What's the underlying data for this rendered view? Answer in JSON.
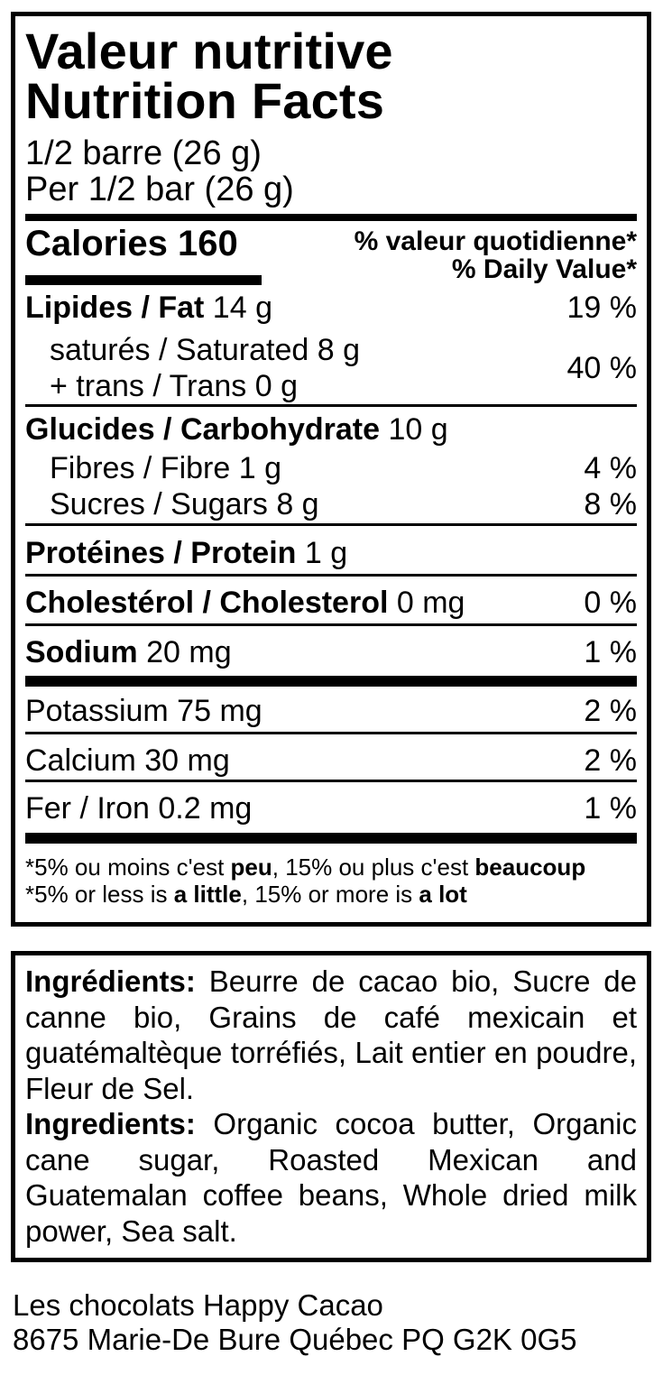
{
  "panel": {
    "title_fr": "Valeur nutritive",
    "title_en": "Nutrition Facts",
    "serving_fr": "1/2 barre (26 g)",
    "serving_en": "Per 1/2 bar (26 g)",
    "calories_label": "Calories 160",
    "dv_header_fr": "% valeur quotidienne*",
    "dv_header_en": "% Daily Value*",
    "rows": {
      "fat": {
        "bold": "Lipides / Fat",
        "rest": " 14 g",
        "dv": "19 %"
      },
      "sat": {
        "line1": "saturés / Saturated 8 g",
        "line2": "+ trans / Trans 0 g",
        "dv": "40 %"
      },
      "carb": {
        "bold": "Glucides / Carbohydrate",
        "rest": " 10 g"
      },
      "fibre": {
        "text": "Fibres / Fibre 1 g",
        "dv": "4 %"
      },
      "sugars": {
        "text": "Sucres / Sugars 8 g",
        "dv": "8 %"
      },
      "protein": {
        "bold": "Protéines / Protein",
        "rest": " 1 g"
      },
      "cholesterol": {
        "bold": "Cholestérol / Cholesterol",
        "rest": " 0 mg",
        "dv": "0 %"
      },
      "sodium": {
        "bold": "Sodium",
        "rest": " 20 mg",
        "dv": "1 %"
      },
      "potassium": {
        "text": "Potassium 75 mg",
        "dv": "2 %"
      },
      "calcium": {
        "text": "Calcium 30 mg",
        "dv": "2 %"
      },
      "iron": {
        "text": "Fer / Iron 0.2 mg",
        "dv": "1 %"
      }
    },
    "footnote": {
      "fr": [
        {
          "t": "*5% ou moins c'est "
        },
        {
          "t": "peu"
        },
        {
          "t": ", 15% ou plus c'est "
        },
        {
          "t": "beaucoup"
        }
      ],
      "en": [
        {
          "t": "*5% or less is "
        },
        {
          "t": "a little"
        },
        {
          "t": ", 15% or more is "
        },
        {
          "t": "a lot"
        }
      ]
    }
  },
  "ingredients": {
    "fr_label": "Ingrédients:",
    "fr_line1_rest": " Beurre de cacao bio, Sucre de",
    "fr_line2": "canne bio, Grains de café mexicain et",
    "fr_line3": "guatémaltèque torréfiés, Lait entier en poudre,",
    "fr_line4": "Fleur de Sel.",
    "en_label": "Ingredients:",
    "en_line1_rest": " Organic cocoa butter, Organic",
    "en_line2": "cane sugar, Roasted Mexican and",
    "en_line3": "Guatemalan coffee beans, Whole dried milk",
    "en_line4": "power, Sea salt."
  },
  "footer": {
    "line1": "Les chocolats Happy Cacao",
    "line2": "8675 Marie-De Bure Québec PQ G2K 0G5"
  },
  "colors": {
    "ink": "#000000",
    "paper": "#ffffff"
  }
}
